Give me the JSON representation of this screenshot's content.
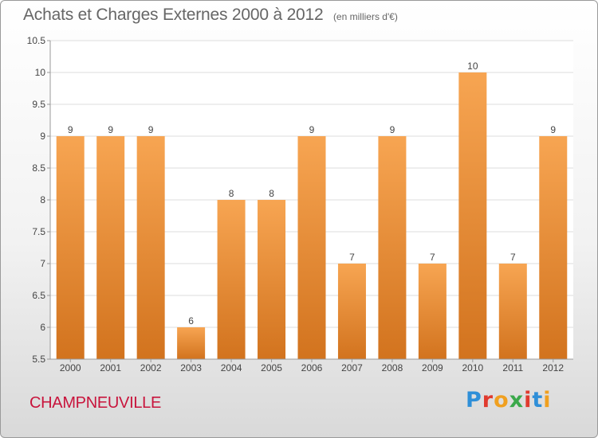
{
  "header": {
    "title": "Achats et Charges Externes 2000 à 2012",
    "unit": "(en milliers d'€)"
  },
  "footer": {
    "commune": "CHAMPNEUVILLE",
    "logo": {
      "letters": [
        "P",
        "r",
        "o",
        "x",
        "i",
        "t",
        "i"
      ],
      "colors": [
        "#2f8fd8",
        "#e03a2e",
        "#f0a020",
        "#3aa84a",
        "#e03a2e",
        "#2f8fd8",
        "#f0a020"
      ]
    }
  },
  "colors": {
    "bar_top": "#f7a552",
    "bar_bottom": "#d2731e",
    "grid": "#dddddd",
    "axis_text": "#444444"
  },
  "chart_data": {
    "type": "bar",
    "categories": [
      "2000",
      "2001",
      "2002",
      "2003",
      "2004",
      "2005",
      "2006",
      "2007",
      "2008",
      "2009",
      "2010",
      "2011",
      "2012"
    ],
    "values": [
      9,
      9,
      9,
      6,
      8,
      8,
      9,
      7,
      9,
      7,
      10,
      7,
      9
    ],
    "data_labels": [
      "9",
      "9",
      "9",
      "6",
      "8",
      "8",
      "9",
      "7",
      "9",
      "7",
      "10",
      "7",
      "9"
    ],
    "ylim": [
      5.5,
      10.5
    ],
    "yticks": [
      5.5,
      6,
      6.5,
      7,
      7.5,
      8,
      8.5,
      9,
      9.5,
      10,
      10.5
    ],
    "ytick_labels": [
      "5.5",
      "6",
      "6.5",
      "7",
      "7.5",
      "8",
      "8.5",
      "9",
      "9.5",
      "10",
      "10.5"
    ],
    "grid": true,
    "legend": false
  }
}
